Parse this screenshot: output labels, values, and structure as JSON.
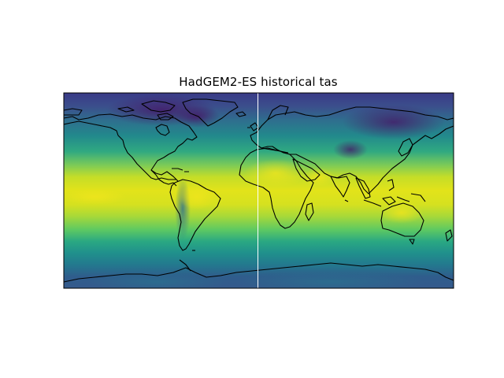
{
  "figure": {
    "title": "HadGEM2-ES historical tas"
  },
  "map": {
    "projection": "PlateCarree",
    "lon_range": [
      -180,
      180
    ],
    "lat_range": [
      -90,
      90
    ],
    "variable": "tas",
    "colormap": "viridis",
    "coastlines": true,
    "seam_line_lon": 0,
    "colors": {
      "cold": "#3b2a78",
      "cool": "#2c6f8e",
      "mid": "#21918c",
      "warm": "#5ec962",
      "hot": "#e3e418",
      "coast": "#000000",
      "seam": "#ffffff"
    }
  }
}
